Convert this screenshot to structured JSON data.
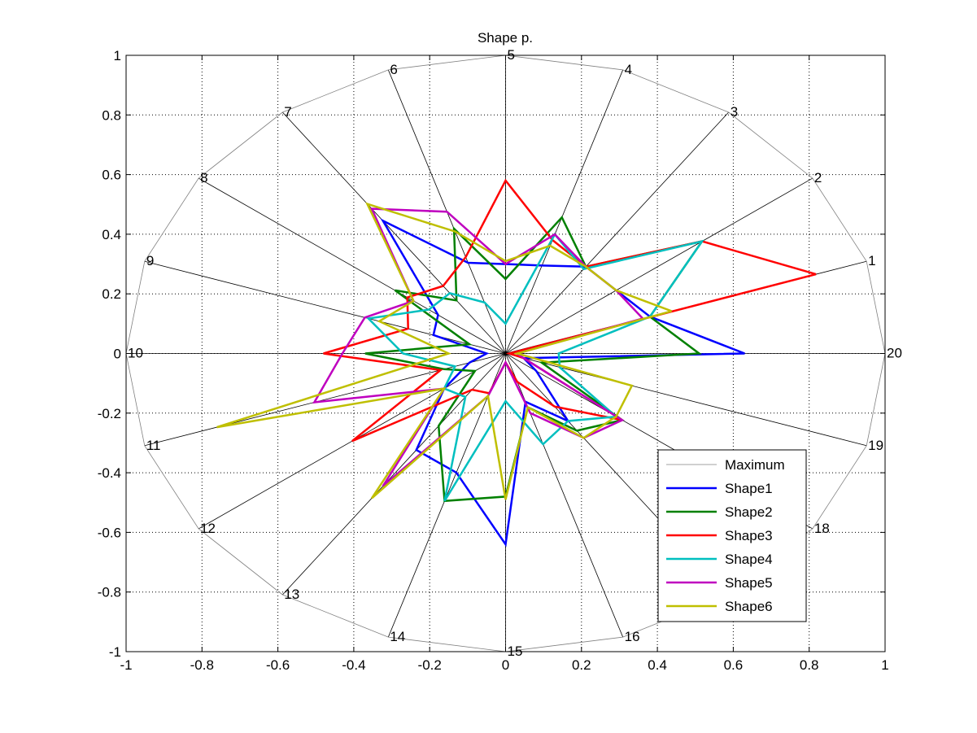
{
  "chart_data": {
    "type": "radar",
    "title": "Shape p.",
    "xlim": [
      -1,
      1
    ],
    "ylim": [
      -1,
      1
    ],
    "x_ticks": [
      "-1",
      "-0.8",
      "-0.6",
      "-0.4",
      "-0.2",
      "0",
      "0.2",
      "0.4",
      "0.6",
      "0.8",
      "1"
    ],
    "y_ticks": [
      "-1",
      "-0.8",
      "-0.6",
      "-0.4",
      "-0.2",
      "0",
      "0.2",
      "0.4",
      "0.6",
      "0.8",
      "1"
    ],
    "grid": true,
    "legend_position": "bottom-right",
    "spokes": [
      "1",
      "2",
      "3",
      "4",
      "5",
      "6",
      "7",
      "8",
      "9",
      "10",
      "11",
      "12",
      "13",
      "14",
      "15",
      "16",
      "17",
      "18",
      "19",
      "20"
    ],
    "series": [
      {
        "name": "Maximum",
        "color": "#808080",
        "values": [
          1,
          1,
          1,
          1,
          1,
          1,
          1,
          1,
          1,
          1,
          1,
          1,
          1,
          1,
          1,
          1,
          1,
          1,
          1,
          1
        ]
      },
      {
        "name": "Shape1",
        "color": "#0000ff",
        "values": [
          0.4,
          0.36,
          0.36,
          0.31,
          0.3,
          0.32,
          0.55,
          0.22,
          0.2,
          0.05,
          0.1,
          0.2,
          0.4,
          0.42,
          0.64,
          0.17,
          0.28,
          0.1,
          0.05,
          0.63
        ]
      },
      {
        "name": "Shape2",
        "color": "#008000",
        "values": [
          0.4,
          0.64,
          0.36,
          0.48,
          0.25,
          0.44,
          0.22,
          0.36,
          0.1,
          0.37,
          0.17,
          0.1,
          0.3,
          0.52,
          0.48,
          0.19,
          0.32,
          0.38,
          0.1,
          0.51
        ]
      },
      {
        "name": "Shape3",
        "color": "#ff0000",
        "values": [
          0.86,
          0.64,
          0.36,
          0.4,
          0.58,
          0.34,
          0.28,
          0.32,
          0.27,
          0.48,
          0.18,
          0.5,
          0.15,
          0.14,
          0.03,
          0.1,
          0.22,
          0.38,
          0.05,
          0.01
        ]
      },
      {
        "name": "Shape4",
        "color": "#00bfbf",
        "values": [
          0.4,
          0.64,
          0.35,
          0.42,
          0.1,
          0.18,
          0.25,
          0.25,
          0.38,
          0.27,
          0.14,
          0.2,
          0.18,
          0.52,
          0.16,
          0.32,
          0.28,
          0.36,
          0.15,
          0.14
        ]
      },
      {
        "name": "Shape5",
        "color": "#bf00bf",
        "values": [
          0.38,
          0.36,
          0.36,
          0.42,
          0.3,
          0.5,
          0.6,
          0.3,
          0.39,
          0.43,
          0.53,
          0.2,
          0.55,
          0.15,
          0.03,
          0.21,
          0.35,
          0.38,
          0.05,
          0.03
        ]
      },
      {
        "name": "Shape6",
        "color": "#bfbf00",
        "values": [
          0.46,
          0.36,
          0.36,
          0.38,
          0.31,
          0.43,
          0.62,
          0.3,
          0.35,
          0.15,
          0.8,
          0.2,
          0.6,
          0.15,
          0.49,
          0.19,
          0.35,
          0.36,
          0.35,
          0.03
        ]
      }
    ]
  }
}
